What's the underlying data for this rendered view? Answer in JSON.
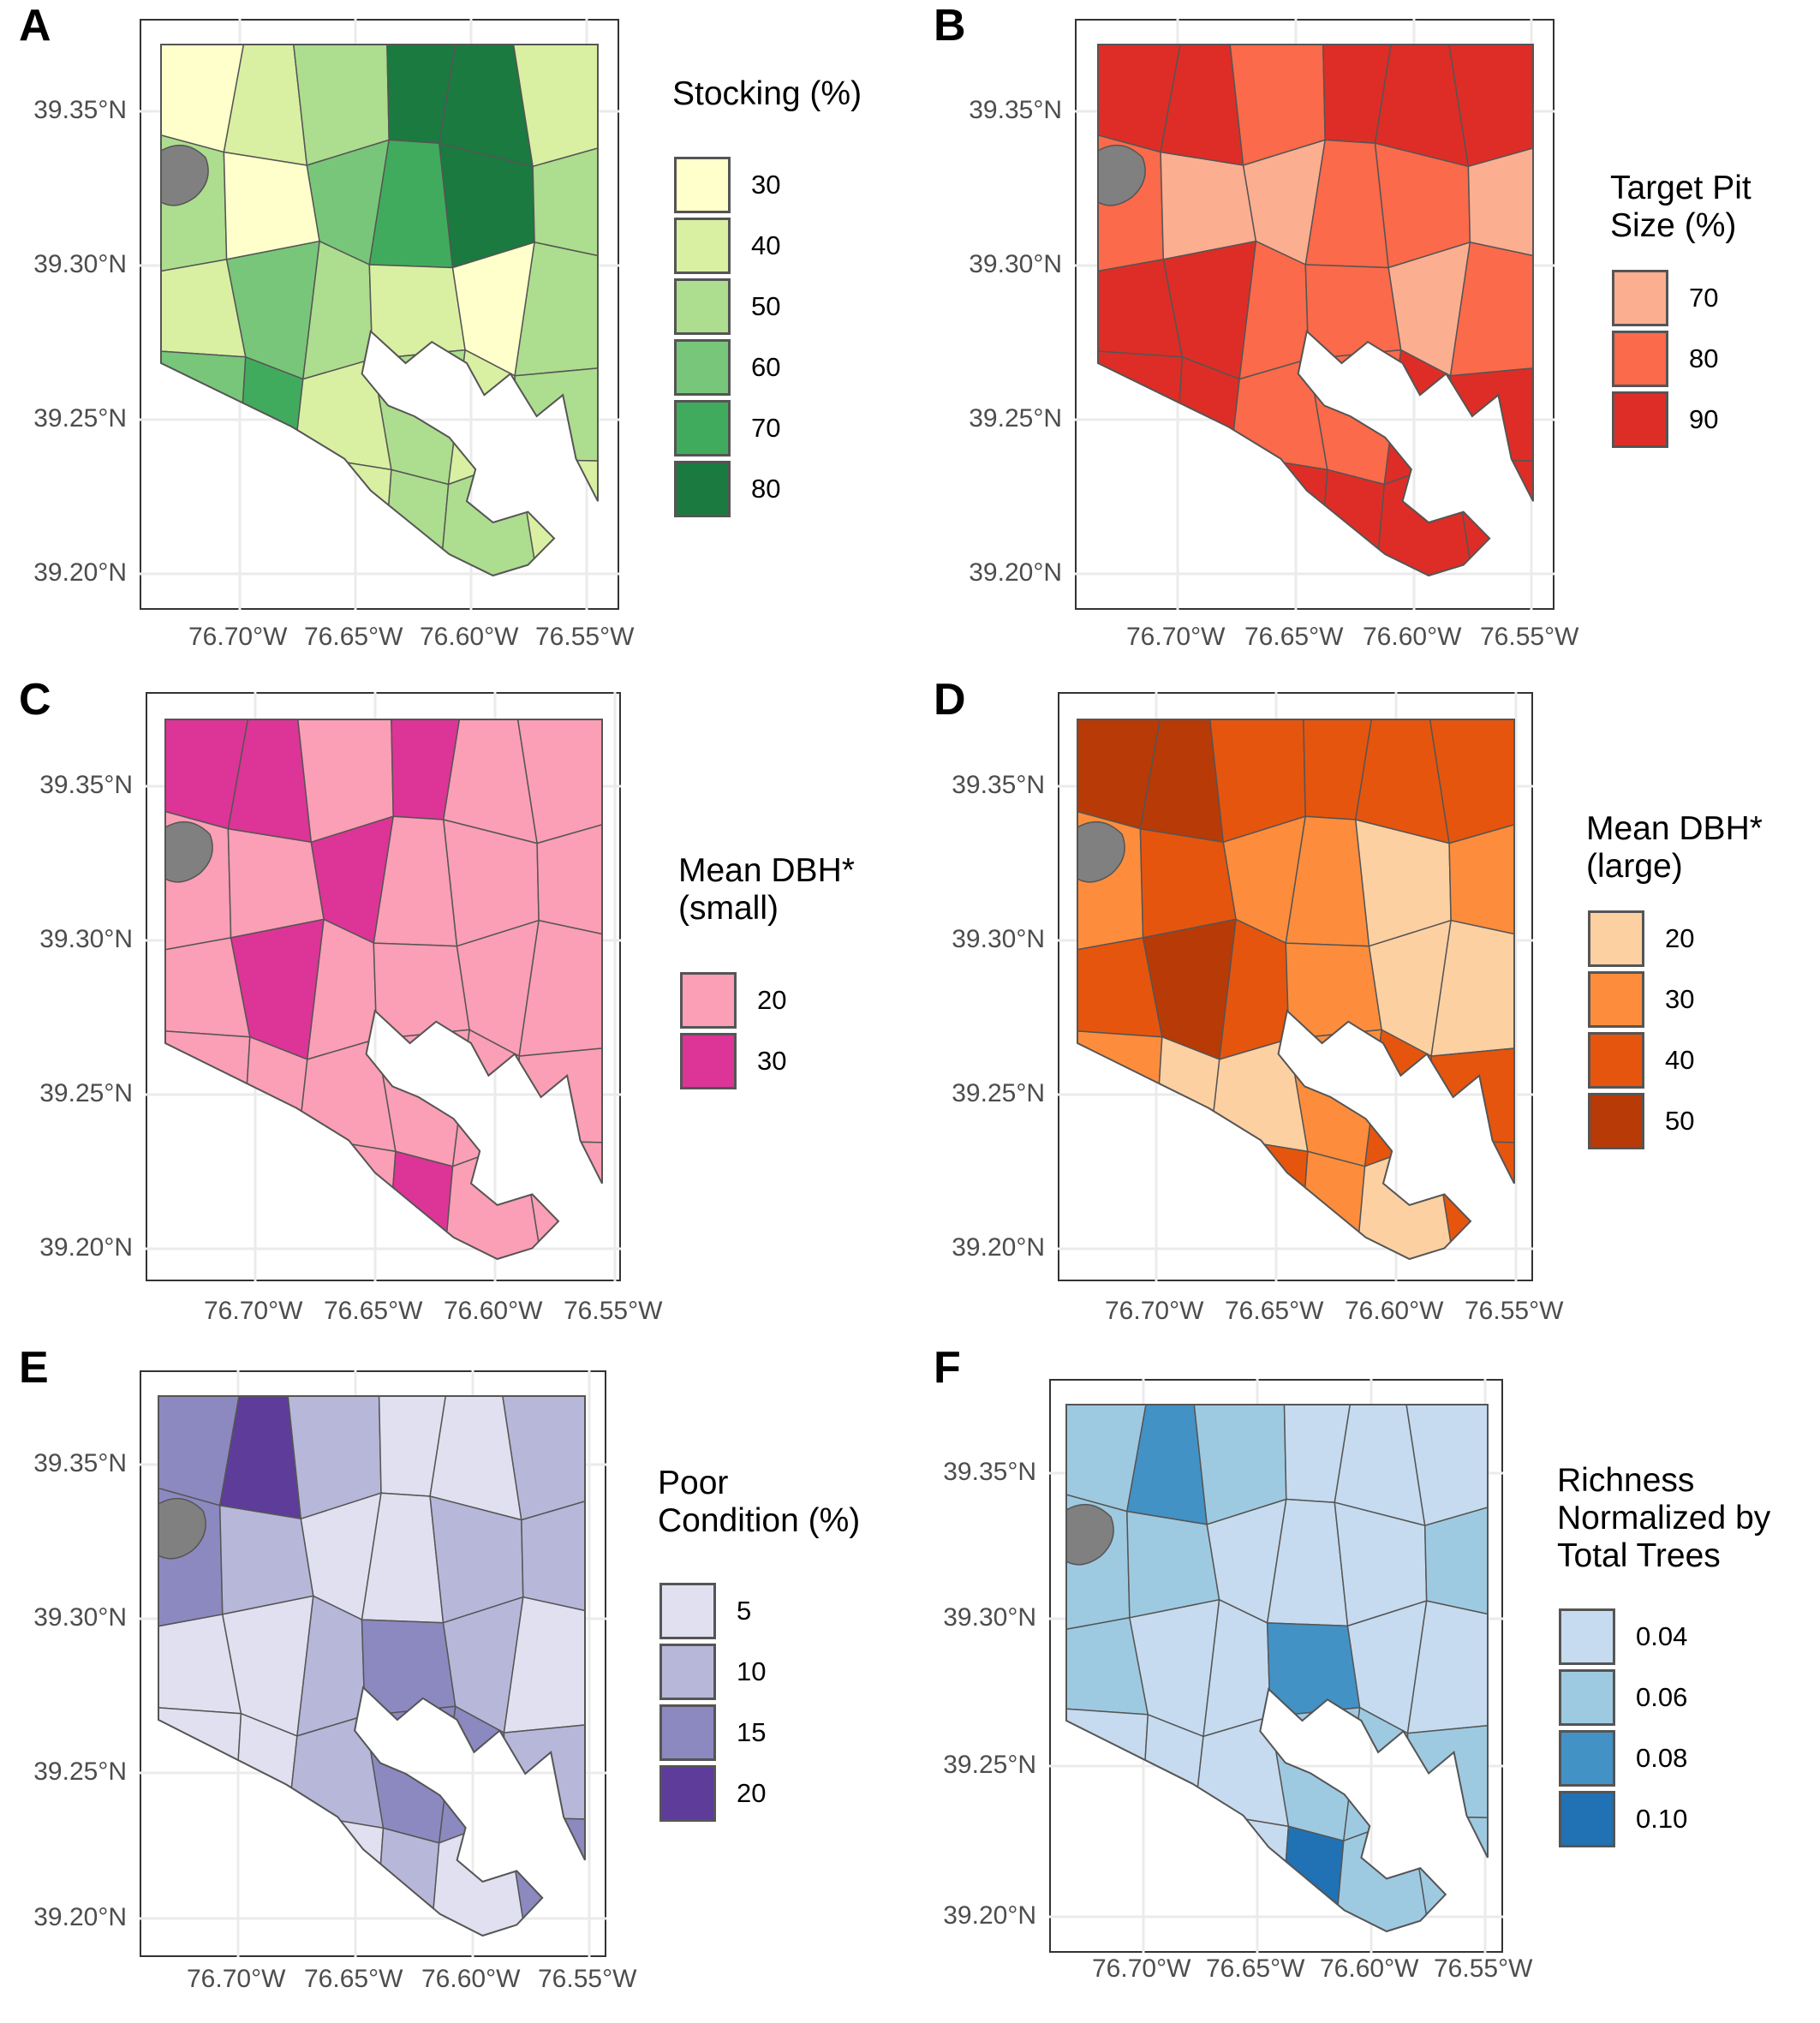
{
  "figure": {
    "panels": [
      {
        "letter": "A",
        "legend_title": "Stocking (%)",
        "legend": [
          {
            "label": "30",
            "color": "#ffffcc"
          },
          {
            "label": "40",
            "color": "#d9f0a3"
          },
          {
            "label": "50",
            "color": "#addd8e"
          },
          {
            "label": "60",
            "color": "#78c679"
          },
          {
            "label": "70",
            "color": "#41ab5d"
          },
          {
            "label": "80",
            "color": "#1a7a40"
          }
        ],
        "y_ticks": [
          "39.35°N",
          "39.30°N",
          "39.25°N",
          "39.20°N"
        ],
        "x_ticks": [
          "76.70°W",
          "76.65°W",
          "76.60°W",
          "76.55°W"
        ]
      },
      {
        "letter": "B",
        "legend_title": "Target Pit\nSize (%)",
        "legend": [
          {
            "label": "70",
            "color": "#fcae91"
          },
          {
            "label": "80",
            "color": "#fb6a4a"
          },
          {
            "label": "90",
            "color": "#de2d26"
          }
        ],
        "y_ticks": [
          "39.35°N",
          "39.30°N",
          "39.25°N",
          "39.20°N"
        ],
        "x_ticks": [
          "76.70°W",
          "76.65°W",
          "76.60°W",
          "76.55°W"
        ]
      },
      {
        "letter": "C",
        "legend_title": "Mean DBH*\n(small)",
        "legend": [
          {
            "label": "20",
            "color": "#fa9fb5"
          },
          {
            "label": "30",
            "color": "#dd3497"
          }
        ],
        "y_ticks": [
          "39.35°N",
          "39.30°N",
          "39.25°N",
          "39.20°N"
        ],
        "x_ticks": [
          "76.70°W",
          "76.65°W",
          "76.60°W",
          "76.55°W"
        ]
      },
      {
        "letter": "D",
        "legend_title": "Mean DBH*\n(large)",
        "legend": [
          {
            "label": "20",
            "color": "#fdd0a2"
          },
          {
            "label": "30",
            "color": "#fd8d3c"
          },
          {
            "label": "40",
            "color": "#e6550d"
          },
          {
            "label": "50",
            "color": "#b83a06"
          }
        ],
        "y_ticks": [
          "39.35°N",
          "39.30°N",
          "39.25°N",
          "39.20°N"
        ],
        "x_ticks": [
          "76.70°W",
          "76.65°W",
          "76.60°W",
          "76.55°W"
        ]
      },
      {
        "letter": "E",
        "legend_title": "Poor\nCondition (%)",
        "legend": [
          {
            "label": "5",
            "color": "#e0e0f0"
          },
          {
            "label": "10",
            "color": "#b7b7da"
          },
          {
            "label": "15",
            "color": "#8c89c0"
          },
          {
            "label": "20",
            "color": "#5e3c99"
          }
        ],
        "y_ticks": [
          "39.35°N",
          "39.30°N",
          "39.25°N",
          "39.20°N"
        ],
        "x_ticks": [
          "76.70°W",
          "76.65°W",
          "76.60°W",
          "76.55°W"
        ]
      },
      {
        "letter": "F",
        "legend_title": "Richness\nNormalized by\nTotal Trees",
        "legend": [
          {
            "label": "0.04",
            "color": "#c6dbef"
          },
          {
            "label": "0.06",
            "color": "#9ecae1"
          },
          {
            "label": "0.08",
            "color": "#4292c6"
          },
          {
            "label": "0.10",
            "color": "#2171b5"
          }
        ],
        "y_ticks": [
          "39.35°N",
          "39.30°N",
          "39.25°N",
          "39.20°N"
        ],
        "x_ticks": [
          "76.70°W",
          "76.65°W",
          "76.60°W",
          "76.55°W"
        ]
      }
    ],
    "na_color": "#808080",
    "grid_color": "#ebebeb"
  }
}
